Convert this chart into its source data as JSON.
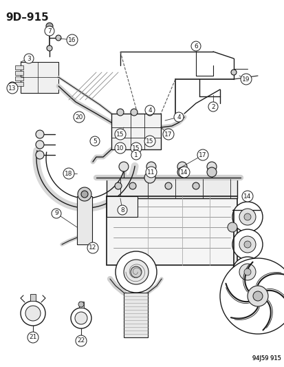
{
  "title": "9D–915",
  "code": "94J59 915",
  "bg": "#ffffff",
  "lc": "#1a1a1a",
  "figsize": [
    4.14,
    5.33
  ],
  "dpi": 100
}
